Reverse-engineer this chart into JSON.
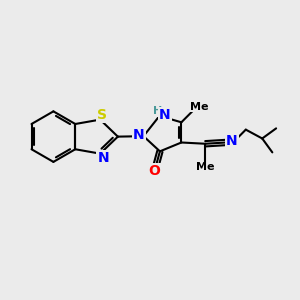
{
  "background_color": "#ebebeb",
  "bond_color": "#000000",
  "atom_colors": {
    "N": "#0000ff",
    "O": "#ff0000",
    "S": "#cccc00",
    "NH": "#4a9a9a",
    "H": "#4a9a9a",
    "C": "#000000"
  },
  "bond_width": 1.5,
  "double_sep": 0.1,
  "figsize": [
    3.0,
    3.0
  ],
  "dpi": 100
}
